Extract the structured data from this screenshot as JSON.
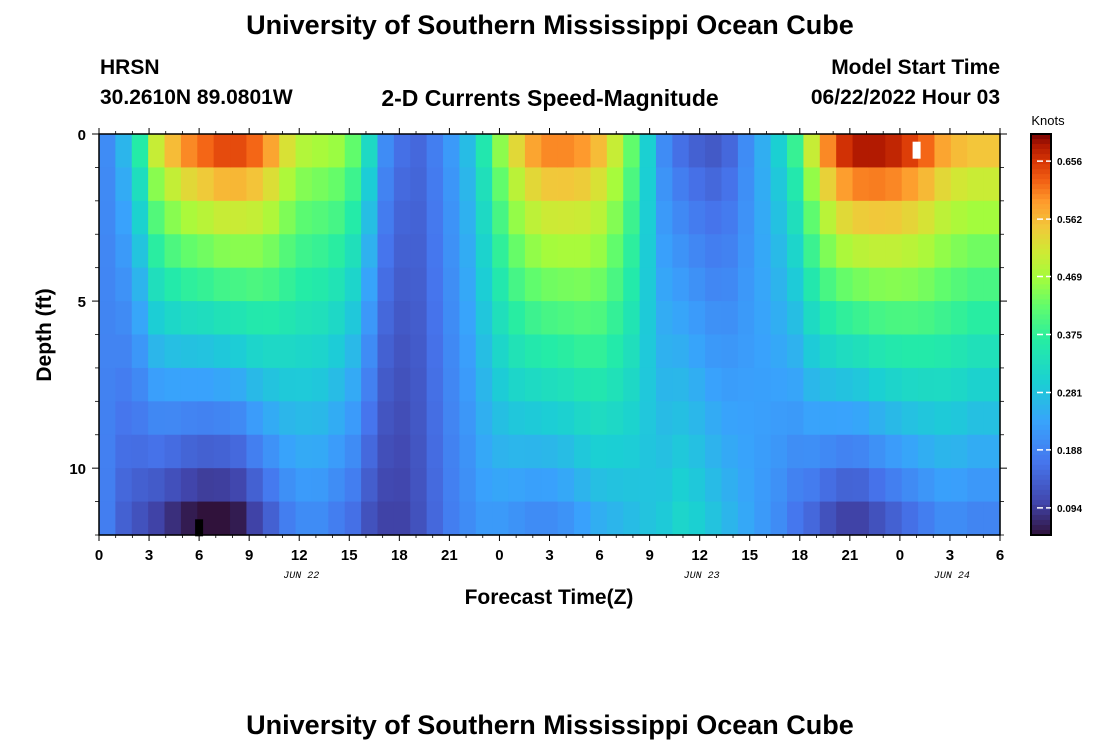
{
  "page": {
    "title": "University of Southern Mississippi Ocean Cube",
    "footer_title": "University of Southern Mississippi Ocean Cube"
  },
  "header": {
    "station": "HRSN",
    "coords": "30.2610N  89.0801W",
    "subtitle": "2-D Currents Speed-Magnitude",
    "model_start_label": "Model Start Time",
    "model_start_value": "06/22/2022 Hour 03"
  },
  "chart_data": {
    "type": "heatmap",
    "title": "2-D Currents Speed-Magnitude",
    "xlabel": "Forecast Time(Z)",
    "ylabel": "Depth (ft)",
    "x_range_hours": [
      0,
      54
    ],
    "y_range_ft": [
      0,
      12
    ],
    "x_tick_labels": [
      "0",
      "3",
      "6",
      "9",
      "12",
      "15",
      "18",
      "21",
      "0",
      "3",
      "6",
      "9",
      "12",
      "15",
      "18",
      "21",
      "0",
      "3",
      "6"
    ],
    "y_tick_labels": [
      "0",
      "5",
      "10"
    ],
    "y_tick_values": [
      0,
      5,
      10
    ],
    "date_labels": [
      {
        "text": "JUN 22",
        "hour": 12
      },
      {
        "text": "JUN 23",
        "hour": 36
      },
      {
        "text": "JUN 24",
        "hour": 51
      }
    ],
    "colorbar": {
      "label": "Knots",
      "min": 0.05,
      "max": 0.7,
      "tick_labels": [
        "0.656",
        "0.562",
        "0.469",
        "0.375",
        "0.281",
        "0.188",
        "0.094"
      ],
      "tick_values": [
        0.656,
        0.562,
        0.469,
        0.375,
        0.281,
        0.188,
        0.094
      ]
    },
    "depth_levels_ft": [
      0.5,
      1.5,
      2.5,
      3.5,
      4.5,
      5.5,
      6.5,
      7.5,
      8.5,
      9.5,
      10.5,
      11.5
    ],
    "speed_profile_hours": [
      0,
      1,
      2,
      3,
      4,
      5,
      6,
      7,
      8,
      9,
      10,
      11,
      12,
      13,
      14,
      15,
      16,
      17,
      18,
      19,
      20,
      21,
      22,
      23,
      24,
      25,
      26,
      27,
      28,
      29,
      30,
      31,
      32,
      33,
      34,
      35,
      36,
      37,
      38,
      39,
      40,
      41,
      42,
      43,
      44,
      45,
      46,
      47,
      48,
      49,
      50,
      51,
      52,
      53,
      54
    ],
    "surface_speed_knots": [
      0.2,
      0.26,
      0.36,
      0.5,
      0.56,
      0.6,
      0.62,
      0.64,
      0.64,
      0.62,
      0.58,
      0.52,
      0.48,
      0.47,
      0.46,
      0.42,
      0.32,
      0.2,
      0.16,
      0.15,
      0.18,
      0.22,
      0.27,
      0.35,
      0.45,
      0.53,
      0.58,
      0.6,
      0.6,
      0.59,
      0.56,
      0.5,
      0.42,
      0.3,
      0.2,
      0.16,
      0.14,
      0.13,
      0.15,
      0.2,
      0.25,
      0.3,
      0.38,
      0.5,
      0.6,
      0.66,
      0.68,
      0.68,
      0.67,
      0.65,
      0.62,
      0.58,
      0.56,
      0.55,
      0.55
    ],
    "bottom_speed_knots": [
      0.18,
      0.14,
      0.12,
      0.1,
      0.08,
      0.06,
      0.05,
      0.05,
      0.06,
      0.1,
      0.14,
      0.18,
      0.2,
      0.2,
      0.18,
      0.16,
      0.12,
      0.1,
      0.1,
      0.12,
      0.15,
      0.18,
      0.2,
      0.22,
      0.22,
      0.21,
      0.2,
      0.2,
      0.21,
      0.23,
      0.25,
      0.26,
      0.27,
      0.28,
      0.29,
      0.31,
      0.3,
      0.28,
      0.26,
      0.24,
      0.22,
      0.2,
      0.17,
      0.15,
      0.12,
      0.1,
      0.1,
      0.12,
      0.14,
      0.16,
      0.18,
      0.2,
      0.2,
      0.19,
      0.19
    ],
    "missing_cells": [
      {
        "hour": 49,
        "depth_ft": 0.5,
        "color": "#ffffff"
      },
      {
        "hour": 6,
        "depth_ft": 11.8,
        "color": "#000000"
      }
    ]
  }
}
